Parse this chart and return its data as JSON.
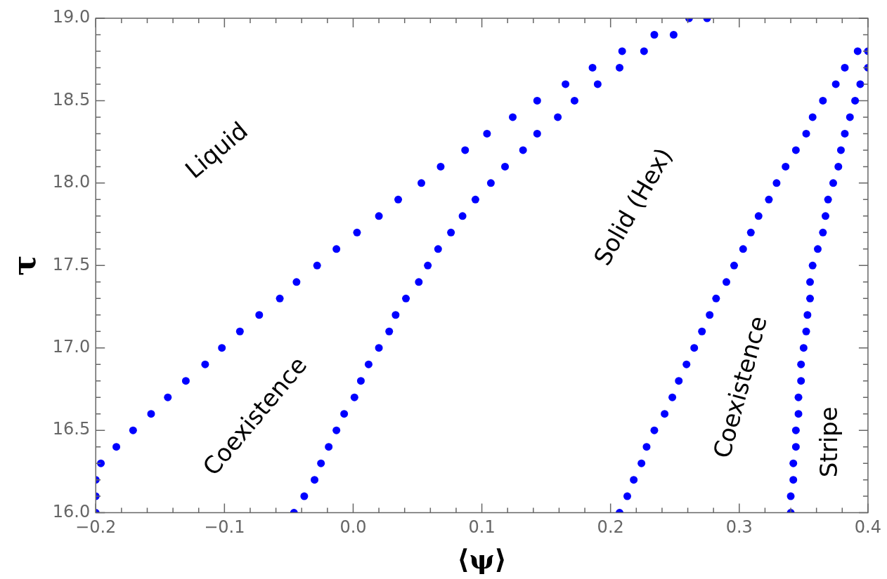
{
  "chart_data": {
    "type": "scatter",
    "xlabel": "⟨ψ⟩",
    "ylabel": "τ",
    "marker": "circle",
    "xlim": [
      -0.2,
      0.4
    ],
    "ylim": [
      16.0,
      19.0
    ],
    "xticks": [
      {
        "value": -0.2,
        "label": "−0.2"
      },
      {
        "value": -0.18,
        "label": null
      },
      {
        "value": -0.16,
        "label": null
      },
      {
        "value": -0.14,
        "label": null
      },
      {
        "value": -0.12,
        "label": null
      },
      {
        "value": -0.1,
        "label": "−0.1"
      },
      {
        "value": -0.08,
        "label": null
      },
      {
        "value": -0.06,
        "label": null
      },
      {
        "value": -0.04,
        "label": null
      },
      {
        "value": -0.02,
        "label": null
      },
      {
        "value": 0,
        "label": "0.0"
      },
      {
        "value": 0.02,
        "label": null
      },
      {
        "value": 0.04,
        "label": null
      },
      {
        "value": 0.06,
        "label": null
      },
      {
        "value": 0.08,
        "label": null
      },
      0.1,
      {
        "value": 0.12,
        "label": null
      },
      {
        "value": 0.14,
        "label": null
      },
      {
        "value": 0.16,
        "label": null
      },
      {
        "value": 0.18,
        "label": null
      },
      0.2,
      {
        "value": 0.22,
        "label": null
      },
      {
        "value": 0.24,
        "label": null
      },
      {
        "value": 0.26,
        "label": null
      },
      {
        "value": 0.28,
        "label": null
      },
      0.3,
      {
        "value": 0.32,
        "label": null
      },
      {
        "value": 0.34,
        "label": null
      },
      {
        "value": 0.36,
        "label": null
      },
      {
        "value": 0.38,
        "label": null
      },
      0.4
    ],
    "yticks": [
      {
        "value": 16,
        "label": "16.0"
      },
      {
        "value": 16.1,
        "label": null
      },
      {
        "value": 16.2,
        "label": null
      },
      {
        "value": 16.3,
        "label": null
      },
      {
        "value": 16.4,
        "label": null
      },
      16.5,
      {
        "value": 16.6,
        "label": null
      },
      {
        "value": 16.7,
        "label": null
      },
      {
        "value": 16.8,
        "label": null
      },
      {
        "value": 16.9,
        "label": null
      },
      {
        "value": 17,
        "label": "17.0"
      },
      {
        "value": 17.1,
        "label": null
      },
      {
        "value": 17.2,
        "label": null
      },
      {
        "value": 17.3,
        "label": null
      },
      {
        "value": 17.4,
        "label": null
      },
      17.5,
      {
        "value": 17.6,
        "label": null
      },
      {
        "value": 17.7,
        "label": null
      },
      {
        "value": 17.8,
        "label": null
      },
      {
        "value": 17.9,
        "label": null
      },
      {
        "value": 18,
        "label": "18.0"
      },
      {
        "value": 18.1,
        "label": null
      },
      {
        "value": 18.2,
        "label": null
      },
      {
        "value": 18.3,
        "label": null
      },
      {
        "value": 18.4,
        "label": null
      },
      18.5,
      {
        "value": 18.6,
        "label": null
      },
      {
        "value": 18.7,
        "label": null
      },
      {
        "value": 18.8,
        "label": null
      },
      {
        "value": 18.9,
        "label": null
      },
      {
        "value": 19,
        "label": "19.0"
      }
    ],
    "series": [
      {
        "color": "#0000ff",
        "x": [
          -0.2,
          -0.2,
          -0.2,
          -0.196,
          -0.184,
          -0.171,
          -0.157,
          -0.144,
          -0.13,
          -0.115,
          -0.102,
          -0.088,
          -0.073,
          -0.057,
          -0.044,
          -0.028,
          -0.013,
          0.003,
          0.02,
          0.035,
          0.053,
          0.068,
          0.087,
          0.104,
          0.124,
          0.143,
          0.165,
          0.186,
          0.209,
          0.234,
          0.261
        ],
        "values": [
          16.0,
          16.1,
          16.2,
          16.3,
          16.4,
          16.5,
          16.6,
          16.7,
          16.8,
          16.9,
          17.0,
          17.1,
          17.2,
          17.3,
          17.4,
          17.5,
          17.6,
          17.7,
          17.8,
          17.9,
          18.0,
          18.1,
          18.2,
          18.3,
          18.4,
          18.5,
          18.6,
          18.7,
          18.8,
          18.9,
          19.0
        ]
      },
      {
        "color": "#0000ff",
        "x": [
          -0.046,
          -0.038,
          -0.03,
          -0.025,
          -0.019,
          -0.013,
          -0.007,
          0.001,
          0.006,
          0.012,
          0.02,
          0.028,
          0.033,
          0.041,
          0.051,
          0.058,
          0.066,
          0.076,
          0.085,
          0.095,
          0.107,
          0.118,
          0.132,
          0.143,
          0.159,
          0.172,
          0.19,
          0.207,
          0.226,
          0.249,
          0.275
        ],
        "values": [
          16.0,
          16.1,
          16.2,
          16.3,
          16.4,
          16.5,
          16.6,
          16.7,
          16.8,
          16.9,
          17.0,
          17.1,
          17.2,
          17.3,
          17.4,
          17.5,
          17.6,
          17.7,
          17.8,
          17.9,
          18.0,
          18.1,
          18.2,
          18.3,
          18.4,
          18.5,
          18.6,
          18.7,
          18.8,
          18.9,
          19.0
        ]
      },
      {
        "color": "#0000ff",
        "x": [
          0.207,
          0.213,
          0.218,
          0.224,
          0.228,
          0.234,
          0.242,
          0.248,
          0.253,
          0.259,
          0.265,
          0.271,
          0.277,
          0.282,
          0.29,
          0.296,
          0.303,
          0.309,
          0.315,
          0.323,
          0.329,
          0.336,
          0.344,
          0.352,
          0.357,
          0.365,
          0.375,
          0.382,
          0.392
        ],
        "values": [
          16.0,
          16.1,
          16.2,
          16.3,
          16.4,
          16.5,
          16.6,
          16.7,
          16.8,
          16.9,
          17.0,
          17.1,
          17.2,
          17.3,
          17.4,
          17.5,
          17.6,
          17.7,
          17.8,
          17.9,
          18.0,
          18.1,
          18.2,
          18.3,
          18.4,
          18.5,
          18.6,
          18.7,
          18.8
        ]
      },
      {
        "color": "#0000ff",
        "x": [
          0.34,
          0.34,
          0.342,
          0.342,
          0.344,
          0.344,
          0.346,
          0.346,
          0.348,
          0.348,
          0.35,
          0.352,
          0.353,
          0.355,
          0.355,
          0.357,
          0.361,
          0.365,
          0.367,
          0.369,
          0.373,
          0.377,
          0.379,
          0.382,
          0.386,
          0.39,
          0.394,
          0.4,
          0.4
        ],
        "values": [
          16.0,
          16.1,
          16.2,
          16.3,
          16.4,
          16.5,
          16.6,
          16.7,
          16.8,
          16.9,
          17.0,
          17.1,
          17.2,
          17.3,
          17.4,
          17.5,
          17.6,
          17.7,
          17.8,
          17.9,
          18.0,
          18.1,
          18.2,
          18.3,
          18.4,
          18.5,
          18.6,
          18.7,
          18.8
        ]
      }
    ],
    "annotations": [
      "Liquid",
      "Coexistence",
      "Solid (Hex)",
      "Coexistence",
      "Stripe"
    ]
  }
}
